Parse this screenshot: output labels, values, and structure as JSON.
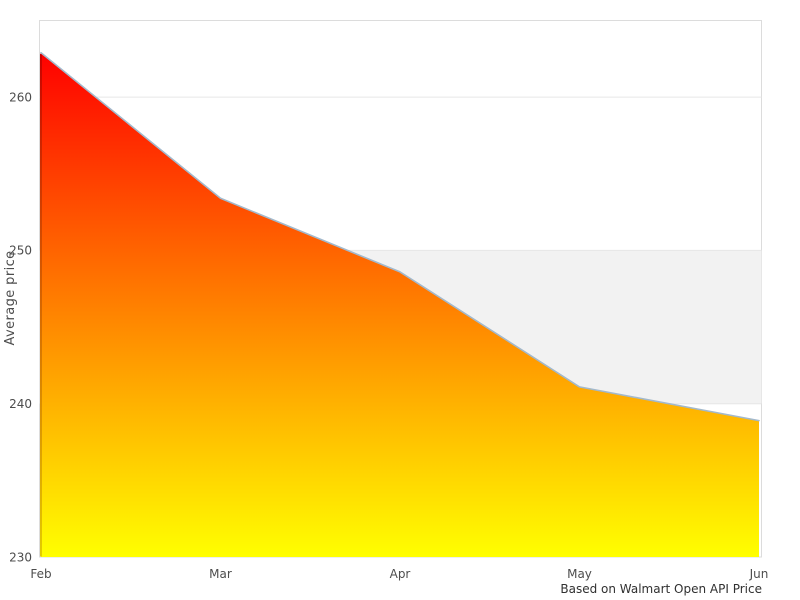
{
  "chart_data": {
    "type": "area",
    "title": "",
    "categories": [
      "Feb",
      "Mar",
      "Apr",
      "May",
      "Jun"
    ],
    "series": [
      {
        "name": "Average price",
        "values": [
          262.9,
          253.4,
          248.6,
          241.1,
          238.9
        ]
      }
    ],
    "xlabel": "",
    "ylabel": "Average price",
    "ylim": [
      230,
      265
    ],
    "yticks": [
      230,
      240,
      250,
      260
    ],
    "grid": true,
    "legend_position": "none",
    "caption": "Based on Walmart Open API Price",
    "plot_band": {
      "from": 240,
      "to": 250,
      "color": "#f2f2f2"
    },
    "colors": {
      "area_gradient_top": "#ff0000",
      "area_gradient_bottom": "#ffff00",
      "line": "#a3b9cc",
      "left_edge_top": "#c90000",
      "left_edge_bottom": "#e3cc00",
      "grid_line": "#e6e6e6",
      "plot_border": "#dcdcdc",
      "tick_text": "#4d4d4d",
      "caption_text": "#303030"
    }
  }
}
